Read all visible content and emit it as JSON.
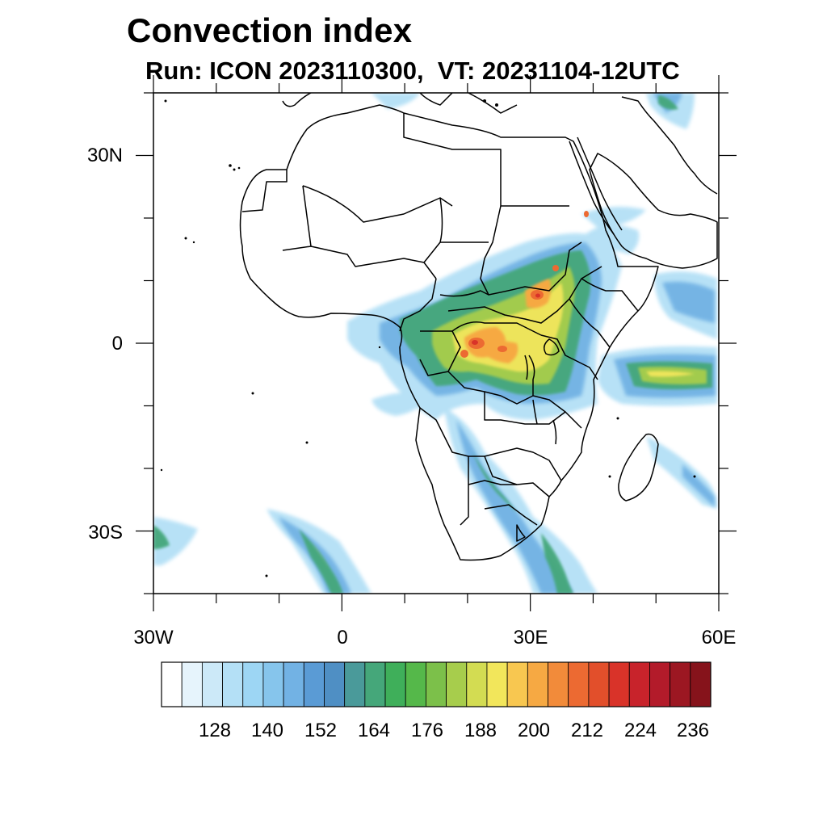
{
  "title": "Convection index",
  "subtitle": "Run: ICON 2023110300,  VT: 20231104-12UTC",
  "axes": {
    "x_ticks": [
      "30W",
      "0",
      "30E",
      "60E"
    ],
    "y_ticks": [
      "30N",
      "0",
      "30S"
    ]
  },
  "colorbar": {
    "labels": [
      "128",
      "140",
      "152",
      "164",
      "176",
      "188",
      "200",
      "212",
      "224",
      "236"
    ],
    "colors": [
      "#ffffff",
      "#e6f4fc",
      "#cce9f8",
      "#b4e0f6",
      "#9dd6f4",
      "#86c5ec",
      "#72b2e4",
      "#5a9bd5",
      "#4f8fc4",
      "#4a9a9a",
      "#45a77a",
      "#3faf5a",
      "#55b84a",
      "#7cc04a",
      "#a7cd4c",
      "#d3dc52",
      "#f2e65b",
      "#f8c750",
      "#f6a943",
      "#f28b3a",
      "#ec6a32",
      "#e24f2b",
      "#d93329",
      "#c8232b",
      "#b31b2a",
      "#9c1722",
      "#86131b"
    ]
  }
}
